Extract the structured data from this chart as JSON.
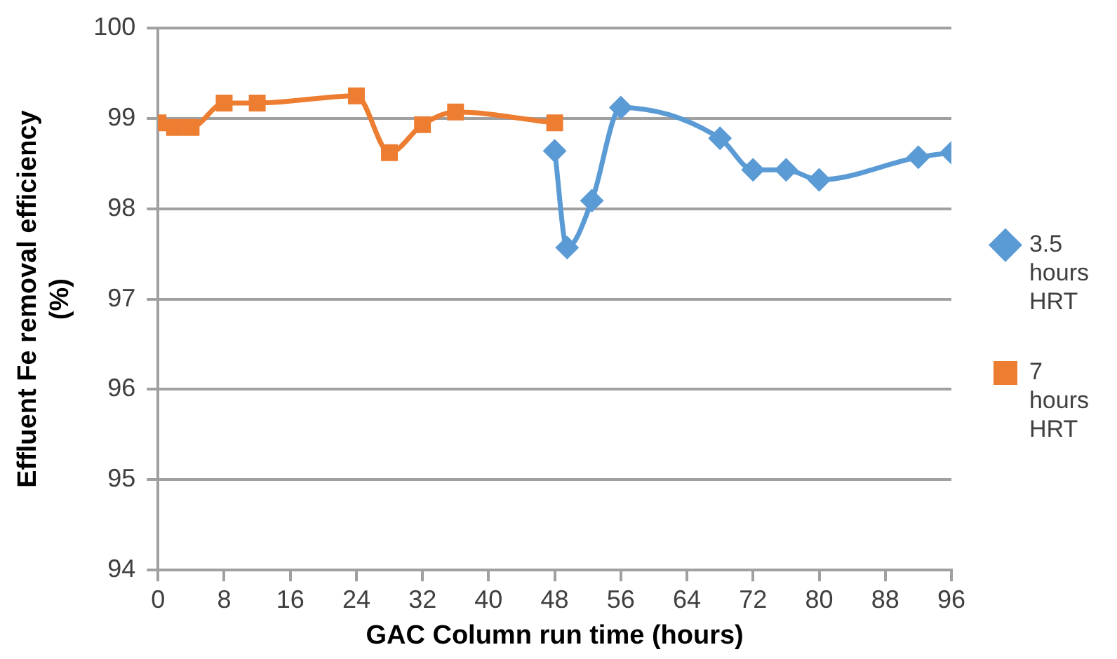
{
  "chart_data": {
    "type": "line",
    "xlabel": "GAC Column run time (hours)",
    "ylabel": "Effluent Fe removal efficiency (%)",
    "xlim": [
      0,
      96
    ],
    "xticks": [
      0,
      8,
      16,
      24,
      32,
      40,
      48,
      56,
      64,
      72,
      80,
      88,
      96
    ],
    "ylim": [
      94,
      100
    ],
    "yticks": [
      94,
      95,
      96,
      97,
      98,
      99,
      100
    ],
    "grid": "y",
    "legend": "right",
    "series": [
      {
        "name": "3.5 hours HRT",
        "color": "#5b9bd5",
        "marker": "diamond",
        "x": [
          48,
          49.5,
          52.5,
          56,
          68,
          72,
          76,
          80,
          92,
          96
        ],
        "values": [
          98.64,
          97.57,
          98.09,
          99.12,
          98.78,
          98.43,
          98.43,
          98.32,
          98.57,
          98.62
        ]
      },
      {
        "name": "7 hours HRT",
        "color": "#ed7d31",
        "marker": "square",
        "x": [
          0,
          2,
          4,
          8,
          12,
          24,
          28,
          32,
          36,
          48
        ],
        "values": [
          98.95,
          98.9,
          98.9,
          99.17,
          99.17,
          99.25,
          98.62,
          98.93,
          99.07,
          98.95
        ]
      }
    ]
  }
}
